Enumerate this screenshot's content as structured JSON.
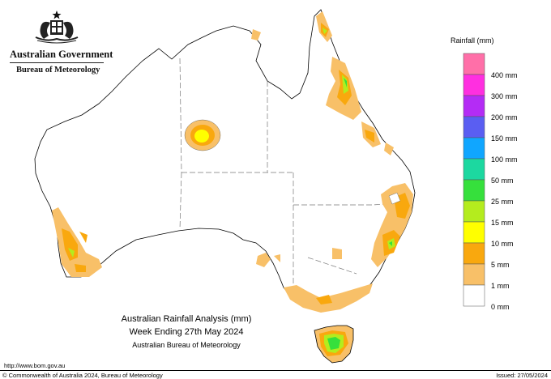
{
  "header": {
    "gov_title": "Australian Government",
    "bureau": "Bureau of Meteorology"
  },
  "legend": {
    "title": "Rainfall (mm)",
    "items": [
      {
        "label": "",
        "color": "#ff6fa8"
      },
      {
        "label": "400 mm",
        "color": "#ff2fe0"
      },
      {
        "label": "300 mm",
        "color": "#b42cf5"
      },
      {
        "label": "200 mm",
        "color": "#5a5ef2"
      },
      {
        "label": "150 mm",
        "color": "#10a6ff"
      },
      {
        "label": "100 mm",
        "color": "#1cd8a0"
      },
      {
        "label": "50 mm",
        "color": "#36e03c"
      },
      {
        "label": "25 mm",
        "color": "#b4ec1e"
      },
      {
        "label": "15 mm",
        "color": "#ffff00"
      },
      {
        "label": "10 mm",
        "color": "#f9a80e"
      },
      {
        "label": "5 mm",
        "color": "#f8c068"
      },
      {
        "label": "1 mm",
        "color": "#ffffff"
      },
      {
        "label": "0 mm",
        "color": ""
      }
    ]
  },
  "caption": {
    "line1": "Australian Rainfall Analysis (mm)",
    "line2": "Week Ending 27th May 2024",
    "line3": "Australian Bureau of Meteorology"
  },
  "footer": {
    "url": "http://www.bom.gov.au",
    "copyright": "© Commonwealth of Australia 2024, Bureau of Meteorology",
    "issued": "Issued: 27/05/2024"
  }
}
